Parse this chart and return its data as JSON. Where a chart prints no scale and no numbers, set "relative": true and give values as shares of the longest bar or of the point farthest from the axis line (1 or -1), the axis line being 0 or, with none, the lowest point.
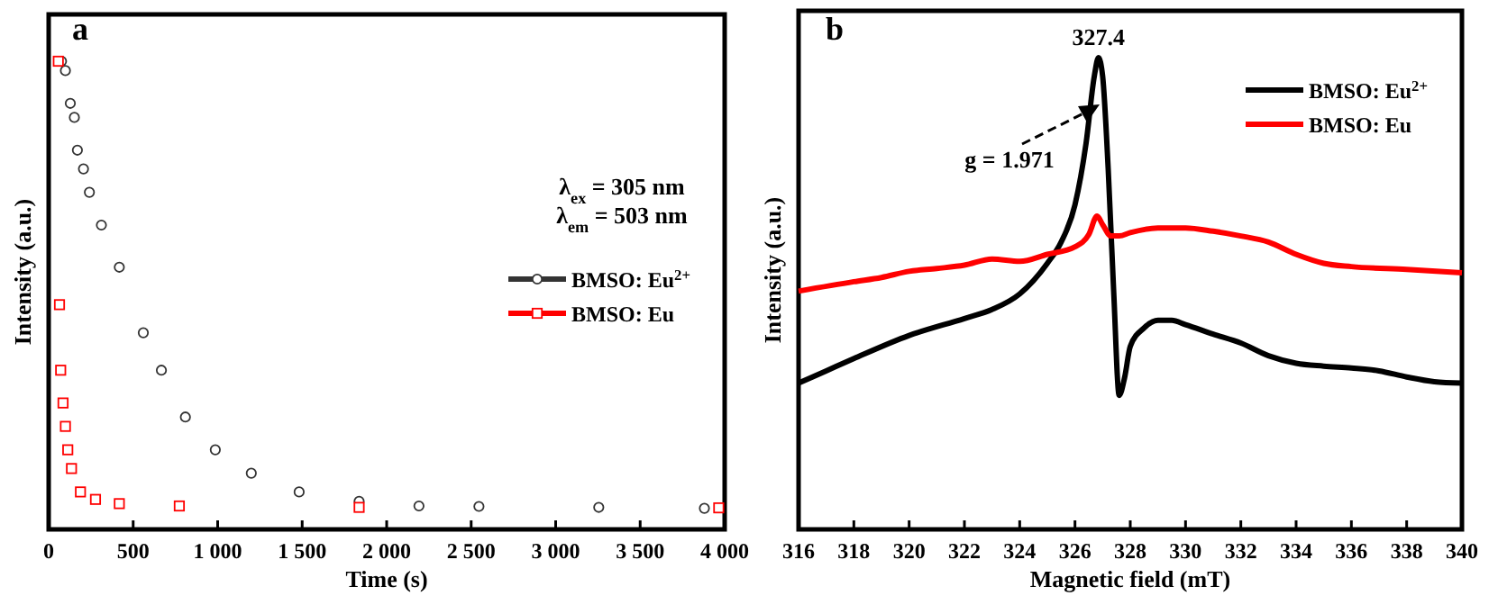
{
  "chart_data": [
    {
      "type": "scatter",
      "relative": true,
      "xlabel": "Time (s)",
      "ylabel": "Intensity (a.u.)",
      "xlim": [
        0,
        4000
      ],
      "xticks": [
        0,
        500,
        {
          "value": 1000,
          "label": "1 000"
        },
        {
          "value": 1500,
          "label": "1 500"
        },
        {
          "value": 2000,
          "label": "2 000"
        },
        {
          "value": 2500,
          "label": "2 500"
        },
        {
          "value": 3000,
          "label": "3 000"
        },
        {
          "value": 3500,
          "label": "3 500"
        },
        {
          "value": 4000,
          "label": "4 000"
        }
      ],
      "legend": "right",
      "annotations": [
        "a",
        "λ$_{ex}$ = 305 nm",
        "λ$_{em}$ = 503 nm"
      ],
      "series": [
        {
          "name": "BMSO: Eu$^{2+}$",
          "color": "#333333",
          "marker": "circle",
          "x": [
            76,
            99,
            128,
            152,
            170,
            206,
            241,
            312,
            418,
            560,
            667,
            809,
            986,
            1199,
            1482,
            1837,
            2191,
            2546,
            3255,
            3880
          ],
          "values": [
            1.0,
            0.98,
            0.91,
            0.88,
            0.81,
            0.77,
            0.72,
            0.65,
            0.56,
            0.42,
            0.34,
            0.24,
            0.17,
            0.12,
            0.08,
            0.06,
            0.05,
            0.049,
            0.047,
            0.045
          ]
        },
        {
          "name": "BMSO: Eu",
          "color": "#ff0000",
          "marker": "square",
          "x": [
            57,
            64,
            71,
            85,
            99,
            113,
            135,
            188,
            277,
            418,
            773,
            1837,
            3965
          ],
          "values": [
            1.0,
            0.48,
            0.34,
            0.27,
            0.22,
            0.17,
            0.13,
            0.08,
            0.064,
            0.055,
            0.05,
            0.047,
            0.046
          ]
        }
      ]
    },
    {
      "type": "line",
      "relative": true,
      "xlabel": "Magnetic field (mT)",
      "ylabel": "Intensity (a.u.)",
      "xlim": [
        316,
        340
      ],
      "xticks": [
        316,
        318,
        320,
        322,
        324,
        326,
        328,
        330,
        332,
        334,
        336,
        338,
        340
      ],
      "legend": "top right",
      "annotations": [
        "b",
        {
          "text": "327.4",
          "x": 326.85,
          "y": 1.0
        },
        "g = 1.971"
      ],
      "series": [
        {
          "name": "BMSO: Eu$^{2+}$",
          "color": "#000000",
          "x": [
            316,
            317,
            318,
            320,
            322,
            323,
            324,
            325,
            325.5,
            326,
            326.4,
            326.7,
            326.85,
            327.0,
            327.2,
            327.4,
            327.6,
            327.8,
            328,
            328.5,
            329,
            329.5,
            330,
            331,
            332,
            333,
            334,
            335,
            336,
            337,
            338,
            339,
            340
          ],
          "values": [
            0.31,
            0.336,
            0.362,
            0.411,
            0.447,
            0.466,
            0.499,
            0.564,
            0.609,
            0.688,
            0.818,
            0.961,
            1.0,
            0.961,
            0.766,
            0.505,
            0.284,
            0.323,
            0.388,
            0.427,
            0.443,
            0.443,
            0.434,
            0.414,
            0.395,
            0.368,
            0.352,
            0.346,
            0.342,
            0.336,
            0.323,
            0.313,
            0.31
          ]
        },
        {
          "name": "BMSO: Eu",
          "color": "#ff0000",
          "x": [
            316,
            318,
            319,
            320,
            321,
            322,
            323,
            324,
            325,
            326,
            326.5,
            326.8,
            327,
            327.3,
            327.6,
            328,
            329,
            330,
            331,
            332,
            333,
            334,
            335,
            336,
            338,
            340
          ],
          "values": [
            0.505,
            0.525,
            0.534,
            0.547,
            0.553,
            0.56,
            0.573,
            0.568,
            0.583,
            0.599,
            0.625,
            0.664,
            0.646,
            0.622,
            0.622,
            0.629,
            0.639,
            0.639,
            0.632,
            0.622,
            0.609,
            0.583,
            0.564,
            0.557,
            0.551,
            0.544
          ]
        }
      ]
    }
  ]
}
